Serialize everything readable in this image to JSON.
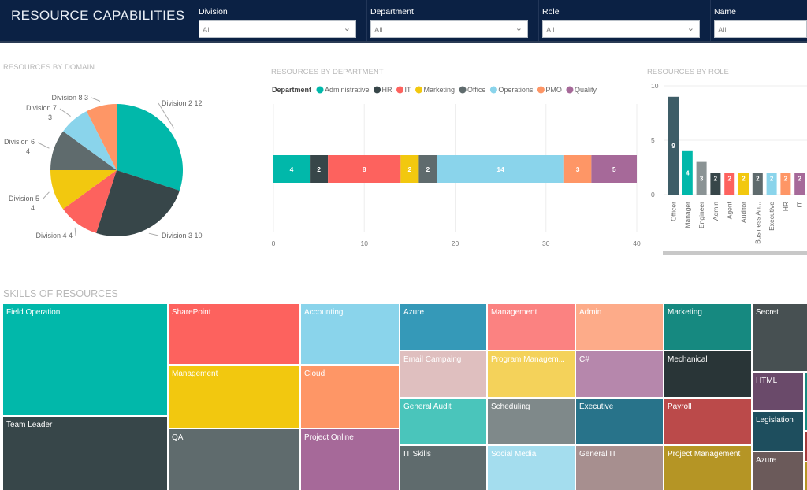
{
  "header": {
    "title": "RESOURCE CAPABILITIES"
  },
  "slicers": [
    {
      "label": "Division",
      "value": "All"
    },
    {
      "label": "Department",
      "value": "All"
    },
    {
      "label": "Role",
      "value": "All"
    },
    {
      "label": "Name",
      "value": "All"
    }
  ],
  "chart_data": [
    {
      "type": "pie",
      "title": "RESOURCES BY DOMAIN",
      "slices": [
        {
          "name": "Division 2",
          "value": 12,
          "color": "#01B8AA"
        },
        {
          "name": "Division 3",
          "value": 10,
          "color": "#374649"
        },
        {
          "name": "Division 4",
          "value": 4,
          "color": "#FD625E"
        },
        {
          "name": "Division 5",
          "value": 4,
          "color": "#F2C80F"
        },
        {
          "name": "Division 6",
          "value": 4,
          "color": "#5F6B6D"
        },
        {
          "name": "Division 7",
          "value": 3,
          "color": "#8AD4EB"
        },
        {
          "name": "Division 8",
          "value": 3,
          "color": "#FE9666"
        }
      ]
    },
    {
      "type": "bar",
      "orientation": "horizontal-stacked",
      "title": "RESOURCES BY DEPARTMENT",
      "legend_title": "Department",
      "legend_position": "top-left",
      "series": [
        {
          "name": "Administrative",
          "value": 4,
          "color": "#01B8AA"
        },
        {
          "name": "HR",
          "value": 2,
          "color": "#374649"
        },
        {
          "name": "IT",
          "value": 8,
          "color": "#FD625E"
        },
        {
          "name": "Marketing",
          "value": 2,
          "color": "#F2C80F"
        },
        {
          "name": "Office",
          "value": 2,
          "color": "#5F6B6D"
        },
        {
          "name": "Operations",
          "value": 14,
          "color": "#8AD4EB"
        },
        {
          "name": "PMO",
          "value": 3,
          "color": "#FE9666"
        },
        {
          "name": "Quality",
          "value": 5,
          "color": "#A66999"
        }
      ],
      "xlim": [
        0,
        40
      ],
      "xticks": [
        "0",
        "10",
        "20",
        "30",
        "40"
      ],
      "grid": true
    },
    {
      "type": "bar",
      "title": "RESOURCES BY ROLE",
      "categories": [
        "Officer",
        "Manager",
        "Engineer",
        "Admin",
        "Agent",
        "Auditor",
        "Business An...",
        "Executive",
        "HR",
        "IT"
      ],
      "values": [
        9,
        4,
        3,
        2,
        2,
        2,
        2,
        2,
        2,
        2
      ],
      "colors": [
        "#3E5D67",
        "#01B8AA",
        "#8A9394",
        "#374649",
        "#FD625E",
        "#F2C80F",
        "#5F6B6D",
        "#8AD4EB",
        "#FE9666",
        "#A66999"
      ],
      "ylim": [
        0,
        10
      ],
      "yticks": [
        "0",
        "5",
        "10"
      ],
      "grid": true
    },
    {
      "type": "treemap",
      "title": "SKILLS OF RESOURCES",
      "items": [
        {
          "label": "Field Operation",
          "color": "#01B8AA"
        },
        {
          "label": "Team Leader",
          "color": "#374649"
        },
        {
          "label": "SharePoint",
          "color": "#FD625E"
        },
        {
          "label": "Management",
          "color": "#F2C80F"
        },
        {
          "label": "QA",
          "color": "#5F6B6D"
        },
        {
          "label": "Accounting",
          "color": "#8AD4EB"
        },
        {
          "label": "Cloud",
          "color": "#FE9666"
        },
        {
          "label": "Project Online",
          "color": "#A66999"
        },
        {
          "label": "Azure",
          "color": "#3599B8"
        },
        {
          "label": "Email Campaing",
          "color": "#DFBFBF"
        },
        {
          "label": "General Audit",
          "color": "#4AC5BB"
        },
        {
          "label": "IT Skills",
          "color": "#5F6B6D"
        },
        {
          "label": "Management",
          "color": "#FB8281"
        },
        {
          "label": "Program Managem...",
          "color": "#F4D25A"
        },
        {
          "label": "Scheduling",
          "color": "#7F898A"
        },
        {
          "label": "Social Media",
          "color": "#A4DDEE"
        },
        {
          "label": "Admin",
          "color": "#FDAB89"
        },
        {
          "label": "C#",
          "color": "#B687AC"
        },
        {
          "label": "Executive",
          "color": "#28738A"
        },
        {
          "label": "General IT",
          "color": "#A78F8F"
        },
        {
          "label": "Marketing",
          "color": "#168980"
        },
        {
          "label": "Mechanical",
          "color": "#293537"
        },
        {
          "label": "Payroll",
          "color": "#BB4A4A"
        },
        {
          "label": "Project Management",
          "color": "#B59525"
        },
        {
          "label": "Secret",
          "color": "#475052"
        },
        {
          "label": "HTML",
          "color": "#6A4A6A"
        },
        {
          "label": "Legislation",
          "color": "#1E4E5E"
        },
        {
          "label": "Azure",
          "color": "#6B5A5A"
        },
        {
          "label": "",
          "color": "#168980"
        },
        {
          "label": "",
          "color": "#A53B3B"
        },
        {
          "label": "",
          "color": "#B59525"
        }
      ]
    }
  ]
}
